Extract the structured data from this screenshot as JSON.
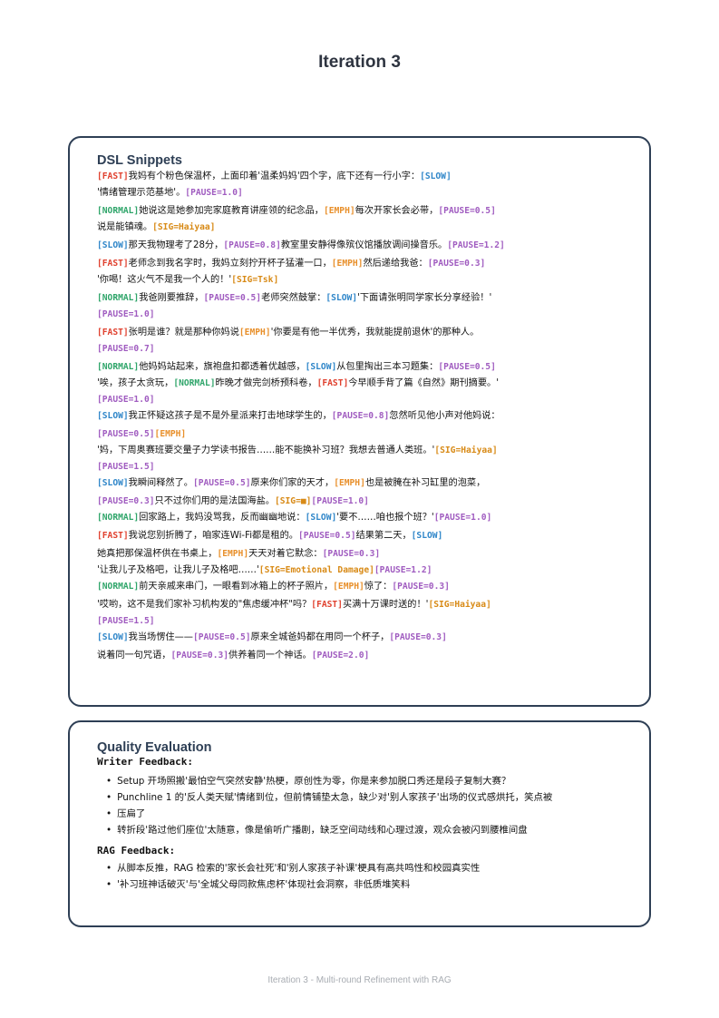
{
  "page_title": "Iteration 3",
  "dsl": {
    "title": "DSL Snippets",
    "lines": [
      [
        {
          "k": "FAST",
          "t": "[FAST]"
        },
        {
          "k": "text",
          "t": "我妈有个粉色保温杯，上面印着'温柔妈妈'四个字，底下还有一行小字："
        },
        {
          "k": "SLOW",
          "t": "[SLOW]"
        }
      ],
      [
        {
          "k": "text",
          "t": "'情绪管理示范基地'。"
        },
        {
          "k": "PAUSE",
          "t": "[PAUSE=1.0]"
        }
      ],
      [
        {
          "k": "NORMAL",
          "t": "[NORMAL]"
        },
        {
          "k": "text",
          "t": "她说这是她参加完家庭教育讲座领的纪念品，"
        },
        {
          "k": "EMPH",
          "t": "[EMPH]"
        },
        {
          "k": "text",
          "t": "每次开家长会必带，"
        },
        {
          "k": "PAUSE",
          "t": "[PAUSE=0.5]"
        }
      ],
      [
        {
          "k": "text",
          "t": "说是能镇魂。"
        },
        {
          "k": "SIG",
          "t": "[SIG=Haiyaa]"
        }
      ],
      [
        {
          "k": "SLOW",
          "t": "[SLOW]"
        },
        {
          "k": "text",
          "t": "那天我物理考了28分，"
        },
        {
          "k": "PAUSE",
          "t": "[PAUSE=0.8]"
        },
        {
          "k": "text",
          "t": "教室里安静得像殡仪馆播放调间操音乐。"
        },
        {
          "k": "PAUSE",
          "t": "[PAUSE=1.2]"
        }
      ],
      [
        {
          "k": "FAST",
          "t": "[FAST]"
        },
        {
          "k": "text",
          "t": "老师念到我名字时，我妈立刻拧开杯子猛灌一口，"
        },
        {
          "k": "EMPH",
          "t": "[EMPH]"
        },
        {
          "k": "text",
          "t": "然后递给我爸："
        },
        {
          "k": "PAUSE",
          "t": "[PAUSE=0.3]"
        }
      ],
      [
        {
          "k": "text",
          "t": "'你喝！这火气不是我一个人的！'"
        },
        {
          "k": "SIG",
          "t": "[SIG=Tsk]"
        }
      ],
      [
        {
          "k": "NORMAL",
          "t": "[NORMAL]"
        },
        {
          "k": "text",
          "t": "我爸刚要推辞，"
        },
        {
          "k": "PAUSE",
          "t": "[PAUSE=0.5]"
        },
        {
          "k": "text",
          "t": "老师突然鼓掌："
        },
        {
          "k": "SLOW",
          "t": "[SLOW]"
        },
        {
          "k": "text",
          "t": "'下面请张明同学家长分享经验！'"
        }
      ],
      [
        {
          "k": "PAUSE",
          "t": "[PAUSE=1.0]"
        }
      ],
      [
        {
          "k": "FAST",
          "t": "[FAST]"
        },
        {
          "k": "text",
          "t": "张明是谁？就是那种你妈说"
        },
        {
          "k": "EMPH",
          "t": "[EMPH]"
        },
        {
          "k": "text",
          "t": "'你要是有他一半优秀，我就能提前退休'的那种人。"
        }
      ],
      [
        {
          "k": "PAUSE",
          "t": "[PAUSE=0.7]"
        }
      ],
      [
        {
          "k": "NORMAL",
          "t": "[NORMAL]"
        },
        {
          "k": "text",
          "t": "他妈妈站起来，旗袍盘扣都透着优越感，"
        },
        {
          "k": "SLOW",
          "t": "[SLOW]"
        },
        {
          "k": "text",
          "t": "从包里掏出三本习题集："
        },
        {
          "k": "PAUSE",
          "t": "[PAUSE=0.5]"
        }
      ],
      [
        {
          "k": "text",
          "t": "'唉，孩子太贪玩，"
        },
        {
          "k": "NORMAL",
          "t": "[NORMAL]"
        },
        {
          "k": "text",
          "t": "昨晚才做完剑桥预科卷，"
        },
        {
          "k": "FAST",
          "t": "[FAST]"
        },
        {
          "k": "text",
          "t": "今早顺手背了篇《自然》期刊摘要。'"
        }
      ],
      [
        {
          "k": "PAUSE",
          "t": "[PAUSE=1.0]"
        }
      ],
      [
        {
          "k": "SLOW",
          "t": "[SLOW]"
        },
        {
          "k": "text",
          "t": "我正怀疑这孩子是不是外星派来打击地球学生的，"
        },
        {
          "k": "PAUSE",
          "t": "[PAUSE=0.8]"
        },
        {
          "k": "text",
          "t": "忽然听见他小声对他妈说："
        }
      ],
      [
        {
          "k": "PAUSE",
          "t": "[PAUSE=0.5]"
        },
        {
          "k": "EMPH",
          "t": "[EMPH]"
        }
      ],
      [
        {
          "k": "text",
          "t": "'妈，下周奥赛班要交量子力学读书报告……能不能换补习班？我想去普通人类班。'"
        },
        {
          "k": "SIG",
          "t": "[SIG=Haiyaa]"
        }
      ],
      [
        {
          "k": "PAUSE",
          "t": "[PAUSE=1.5]"
        }
      ],
      [
        {
          "k": "SLOW",
          "t": "[SLOW]"
        },
        {
          "k": "text",
          "t": "我瞬间释然了。"
        },
        {
          "k": "PAUSE",
          "t": "[PAUSE=0.5]"
        },
        {
          "k": "text",
          "t": "原来你们家的天才，"
        },
        {
          "k": "EMPH",
          "t": "[EMPH]"
        },
        {
          "k": "text",
          "t": "也是被腌在补习缸里的泡菜，"
        }
      ],
      [
        {
          "k": "PAUSE",
          "t": "[PAUSE=0.3]"
        },
        {
          "k": "text",
          "t": "只不过你们用的是法国海盐。"
        },
        {
          "k": "SIG",
          "t": "[SIG=■]"
        },
        {
          "k": "PAUSE",
          "t": "[PAUSE=1.0]"
        }
      ],
      [
        {
          "k": "NORMAL",
          "t": "[NORMAL]"
        },
        {
          "k": "text",
          "t": "回家路上，我妈没骂我，反而幽幽地说："
        },
        {
          "k": "SLOW",
          "t": "[SLOW]"
        },
        {
          "k": "text",
          "t": "'要不……咱也报个班？'"
        },
        {
          "k": "PAUSE",
          "t": "[PAUSE=1.0]"
        }
      ],
      [
        {
          "k": "FAST",
          "t": "[FAST]"
        },
        {
          "k": "text",
          "t": "我说您别折腾了，咱家连Wi-Fi都是租的。"
        },
        {
          "k": "PAUSE",
          "t": "[PAUSE=0.5]"
        },
        {
          "k": "text",
          "t": "结果第二天，"
        },
        {
          "k": "SLOW",
          "t": "[SLOW]"
        }
      ],
      [
        {
          "k": "text",
          "t": "她真把那保温杯供在书桌上，"
        },
        {
          "k": "EMPH",
          "t": "[EMPH]"
        },
        {
          "k": "text",
          "t": "天天对着它默念："
        },
        {
          "k": "PAUSE",
          "t": "[PAUSE=0.3]"
        }
      ],
      [
        {
          "k": "text",
          "t": "'让我儿子及格吧，让我儿子及格吧……'"
        },
        {
          "k": "SIG",
          "t": "[SIG=Emotional Damage]"
        },
        {
          "k": "PAUSE",
          "t": "[PAUSE=1.2]"
        }
      ],
      [
        {
          "k": "NORMAL",
          "t": "[NORMAL]"
        },
        {
          "k": "text",
          "t": "前天亲戚来串门，一眼看到冰箱上的杯子照片，"
        },
        {
          "k": "EMPH",
          "t": "[EMPH]"
        },
        {
          "k": "text",
          "t": "惊了："
        },
        {
          "k": "PAUSE",
          "t": "[PAUSE=0.3]"
        }
      ],
      [
        {
          "k": "text",
          "t": "'哎哟，这不是我们家补习机构发的\"焦虑缓冲杯\"吗？"
        },
        {
          "k": "FAST",
          "t": "[FAST]"
        },
        {
          "k": "text",
          "t": "买满十万课时送的！'"
        },
        {
          "k": "SIG",
          "t": "[SIG=Haiyaa]"
        }
      ],
      [
        {
          "k": "PAUSE",
          "t": "[PAUSE=1.5]"
        }
      ],
      [
        {
          "k": "SLOW",
          "t": "[SLOW]"
        },
        {
          "k": "text",
          "t": "我当场愣住——"
        },
        {
          "k": "PAUSE",
          "t": "[PAUSE=0.5]"
        },
        {
          "k": "text",
          "t": "原来全城爸妈都在用同一个杯子，"
        },
        {
          "k": "PAUSE",
          "t": "[PAUSE=0.3]"
        }
      ],
      [
        {
          "k": "text",
          "t": "说着同一句咒语，"
        },
        {
          "k": "PAUSE",
          "t": "[PAUSE=0.3]"
        },
        {
          "k": "text",
          "t": "供养着同一个神话。"
        },
        {
          "k": "PAUSE",
          "t": "[PAUSE=2.0]"
        }
      ]
    ],
    "gap_before": [
      2,
      4,
      5,
      7,
      9,
      11,
      15,
      19,
      21,
      22,
      25,
      28
    ]
  },
  "quality": {
    "title": "Quality Evaluation",
    "writer_heading": "Writer Feedback:",
    "writer_items": [
      "Setup 开场照搬'最怕空气突然安静'热梗，原创性为零，你是来参加脱口秀还是段子复制大赛？",
      "Punchline 1 的'反人类天赋'情绪到位，但前情铺垫太急，缺少对'别人家孩子'出场的仪式感烘托，笑点被",
      "压扁了",
      "转折段'路过他们座位'太随意，像是偷听广播剧，缺乏空间动线和心理过渡，观众会被闪到腰椎间盘"
    ],
    "rag_heading": "RAG Feedback:",
    "rag_items": [
      "从脚本反推，RAG 检索的'家长会社死'和'别人家孩子补课'梗具有高共鸣性和校园真实性",
      "'补习班神话破灭'与'全城父母同款焦虑杯'体现社会洞察，非低质堆笑料"
    ]
  },
  "footer": "Iteration 3 - Multi-round Refinement with RAG",
  "colors": {
    "FAST": "#e0402e",
    "SLOW": "#2f86c9",
    "NORMAL": "#2fa56a",
    "EMPH": "#e88f2a",
    "PAUSE": "#a05cc0",
    "SIG": "#d88a16",
    "border": "#2e3f55"
  }
}
